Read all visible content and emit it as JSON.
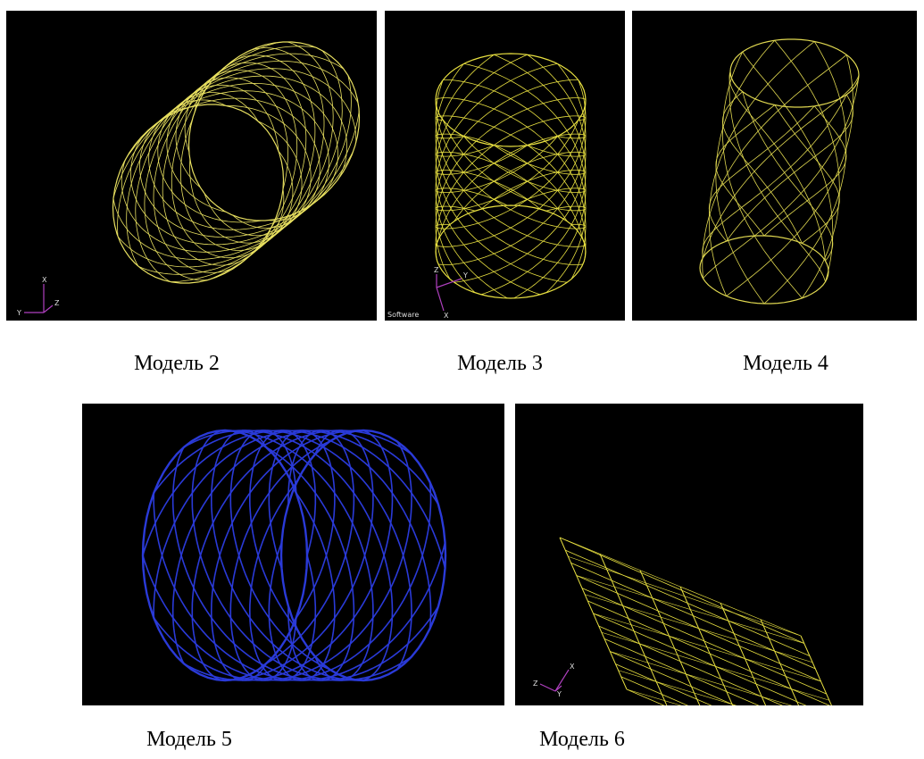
{
  "figures": [
    {
      "caption": "Модель 2",
      "axes": [
        "X",
        "Y",
        "Z"
      ]
    },
    {
      "caption": "Модель 3",
      "axes": [
        "Z",
        "Y",
        "X"
      ],
      "watermark": "Software"
    },
    {
      "caption": "Модель 4"
    },
    {
      "caption": "Модель 5"
    },
    {
      "caption": "Модель 6",
      "axes": [
        "X",
        "Z",
        "Y"
      ]
    }
  ]
}
